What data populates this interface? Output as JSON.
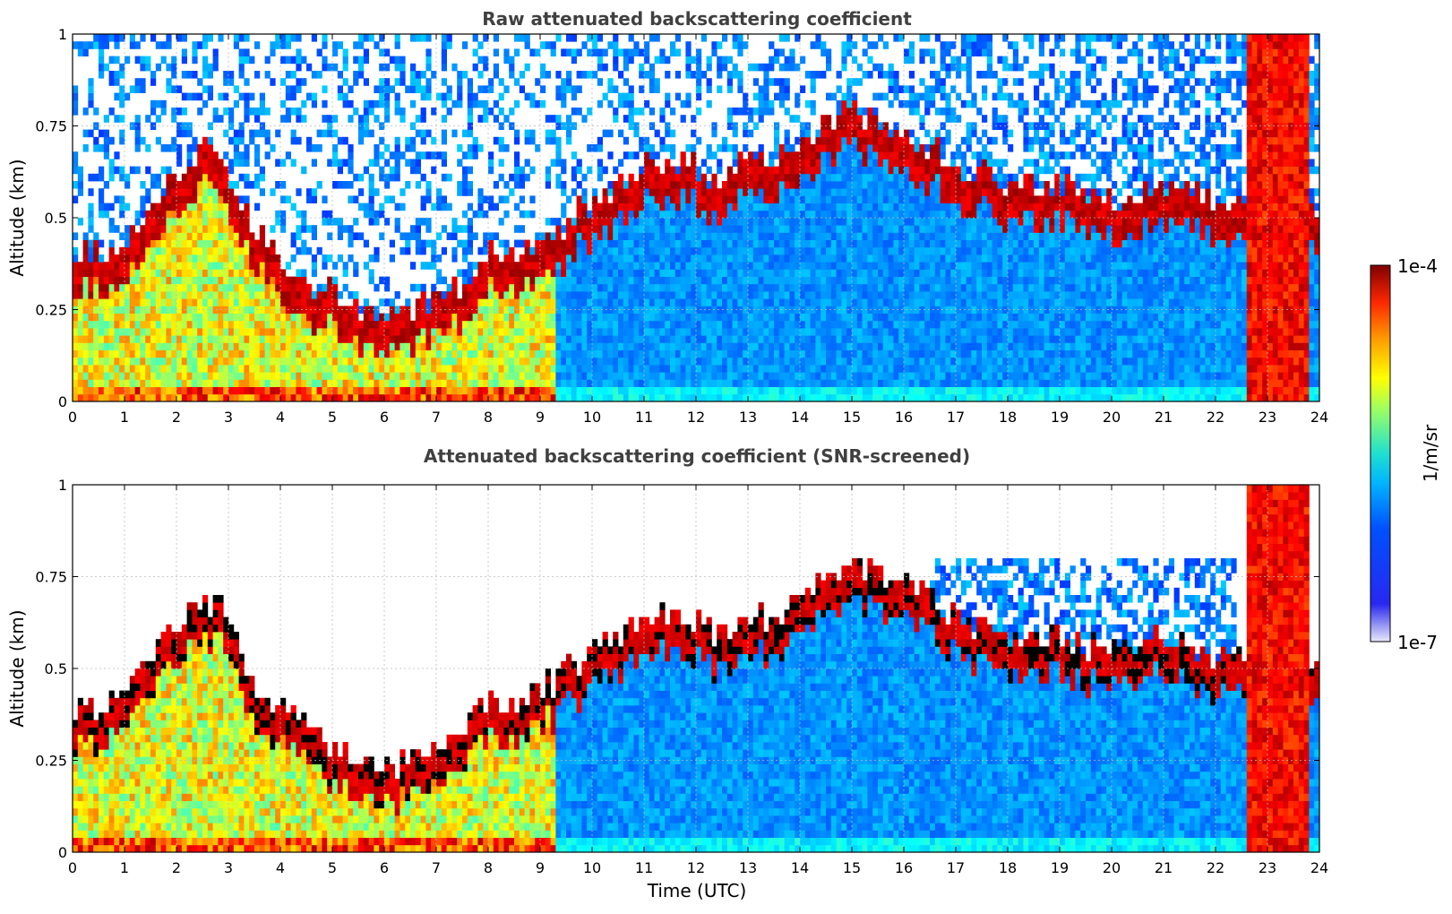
{
  "figure": {
    "colorbar": {
      "label": "1/m/sr",
      "max_label": "1e-4",
      "min_label": "1e-7",
      "vmin": 1e-07,
      "vmax": 0.0001,
      "scale": "log",
      "colormap": "jet",
      "low_color": "#e8e8ff"
    }
  },
  "chart_data": [
    {
      "type": "heatmap",
      "title": "Raw attenuated backscattering coefficient",
      "xlabel": "",
      "ylabel": "Altitude (km)",
      "xlim": [
        0,
        24
      ],
      "ylim": [
        0,
        1
      ],
      "x_ticks": [
        "0",
        "1",
        "2",
        "3",
        "4",
        "5",
        "6",
        "7",
        "8",
        "9",
        "10",
        "11",
        "12",
        "13",
        "14",
        "15",
        "16",
        "17",
        "18",
        "19",
        "20",
        "21",
        "22",
        "23",
        "24"
      ],
      "y_ticks": [
        "0",
        "0.25",
        "0.5",
        "0.75",
        "1"
      ],
      "y_tick_values": [
        0,
        0.25,
        0.5,
        0.75,
        1
      ],
      "grid": true,
      "screened": false,
      "boundary_layer_top_km": {
        "time_utc": [
          0,
          1,
          1.5,
          2,
          2.5,
          3,
          3.5,
          4,
          4.5,
          5,
          5.5,
          6,
          6.5,
          7,
          7.5,
          8,
          8.5,
          9,
          9.5,
          10,
          10.5,
          11,
          11.5,
          12,
          12.5,
          13,
          13.5,
          14,
          14.5,
          15,
          15.5,
          16,
          17,
          18,
          19,
          20,
          21,
          22,
          22.5,
          23,
          23.5,
          24
        ],
        "altitude": [
          0.35,
          0.38,
          0.5,
          0.58,
          0.65,
          0.6,
          0.42,
          0.35,
          0.3,
          0.25,
          0.22,
          0.2,
          0.2,
          0.25,
          0.28,
          0.38,
          0.35,
          0.4,
          0.45,
          0.5,
          0.55,
          0.6,
          0.62,
          0.6,
          0.55,
          0.62,
          0.6,
          0.65,
          0.7,
          0.75,
          0.72,
          0.7,
          0.6,
          0.55,
          0.55,
          0.5,
          0.55,
          0.5,
          0.5,
          0.5,
          0.5,
          0.5
        ]
      },
      "cloud_band_times_utc": [
        22.6,
        23.8
      ]
    },
    {
      "type": "heatmap",
      "title": "Attenuated backscattering coefficient (SNR-screened)",
      "xlabel": "Time (UTC)",
      "ylabel": "Altitude (km)",
      "xlim": [
        0,
        24
      ],
      "ylim": [
        0,
        1
      ],
      "x_ticks": [
        "0",
        "1",
        "2",
        "3",
        "4",
        "5",
        "6",
        "7",
        "8",
        "9",
        "10",
        "11",
        "12",
        "13",
        "14",
        "15",
        "16",
        "17",
        "18",
        "19",
        "20",
        "21",
        "22",
        "23",
        "24"
      ],
      "y_ticks": [
        "0",
        "0.25",
        "0.5",
        "0.75",
        "1"
      ],
      "y_tick_values": [
        0,
        0.25,
        0.5,
        0.75,
        1
      ],
      "grid": true,
      "screened": true,
      "boundary_layer_top_km": {
        "time_utc": [
          0,
          1,
          1.5,
          2,
          2.5,
          3,
          3.5,
          4,
          4.5,
          5,
          5.5,
          6,
          6.5,
          7,
          7.5,
          8,
          8.5,
          9,
          9.5,
          10,
          10.5,
          11,
          11.5,
          12,
          12.5,
          13,
          13.5,
          14,
          14.5,
          15,
          15.5,
          16,
          17,
          18,
          19,
          20,
          21,
          22,
          22.5,
          23,
          23.5,
          24
        ],
        "altitude": [
          0.35,
          0.38,
          0.5,
          0.58,
          0.65,
          0.6,
          0.42,
          0.35,
          0.3,
          0.25,
          0.22,
          0.2,
          0.2,
          0.25,
          0.28,
          0.38,
          0.35,
          0.4,
          0.45,
          0.5,
          0.55,
          0.6,
          0.62,
          0.6,
          0.55,
          0.62,
          0.6,
          0.65,
          0.7,
          0.75,
          0.72,
          0.7,
          0.6,
          0.55,
          0.55,
          0.5,
          0.55,
          0.5,
          0.5,
          0.5,
          0.5,
          0.5
        ]
      },
      "cloud_band_times_utc": [
        22.6,
        23.8
      ]
    }
  ]
}
